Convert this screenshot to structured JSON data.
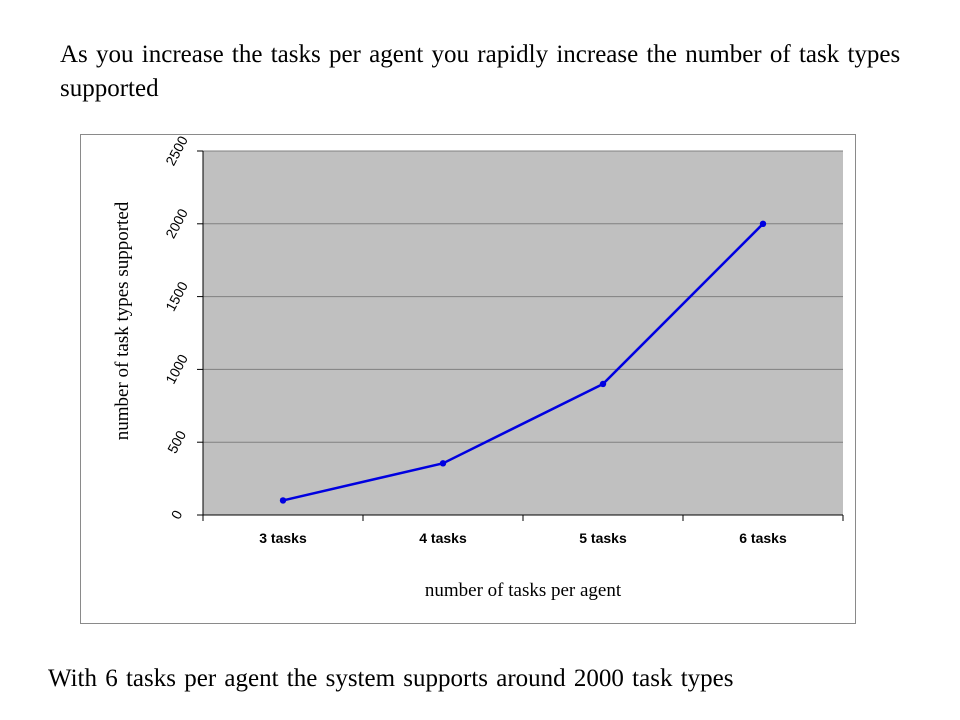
{
  "top_caption": "As  you increase the tasks per agent you rapidly increase the number of task types supported",
  "bottom_caption": "With 6 tasks per agent the system supports around 2000 task types",
  "colors": {
    "plot_background": "#c0c0c0",
    "gridline": "#808080",
    "series_line": "#0000e0"
  },
  "chart_data": {
    "type": "line",
    "title": "",
    "xlabel": "number of tasks per agent",
    "ylabel": "number of task types supported",
    "categories": [
      "3 tasks",
      "4 tasks",
      "5 tasks",
      "6 tasks"
    ],
    "series": [
      {
        "values": [
          100,
          355,
          900,
          2000
        ]
      }
    ],
    "ylim": [
      0,
      2500
    ],
    "yticks": [
      0,
      500,
      1000,
      1500,
      2000,
      2500
    ],
    "grid": true,
    "legend": "none"
  }
}
